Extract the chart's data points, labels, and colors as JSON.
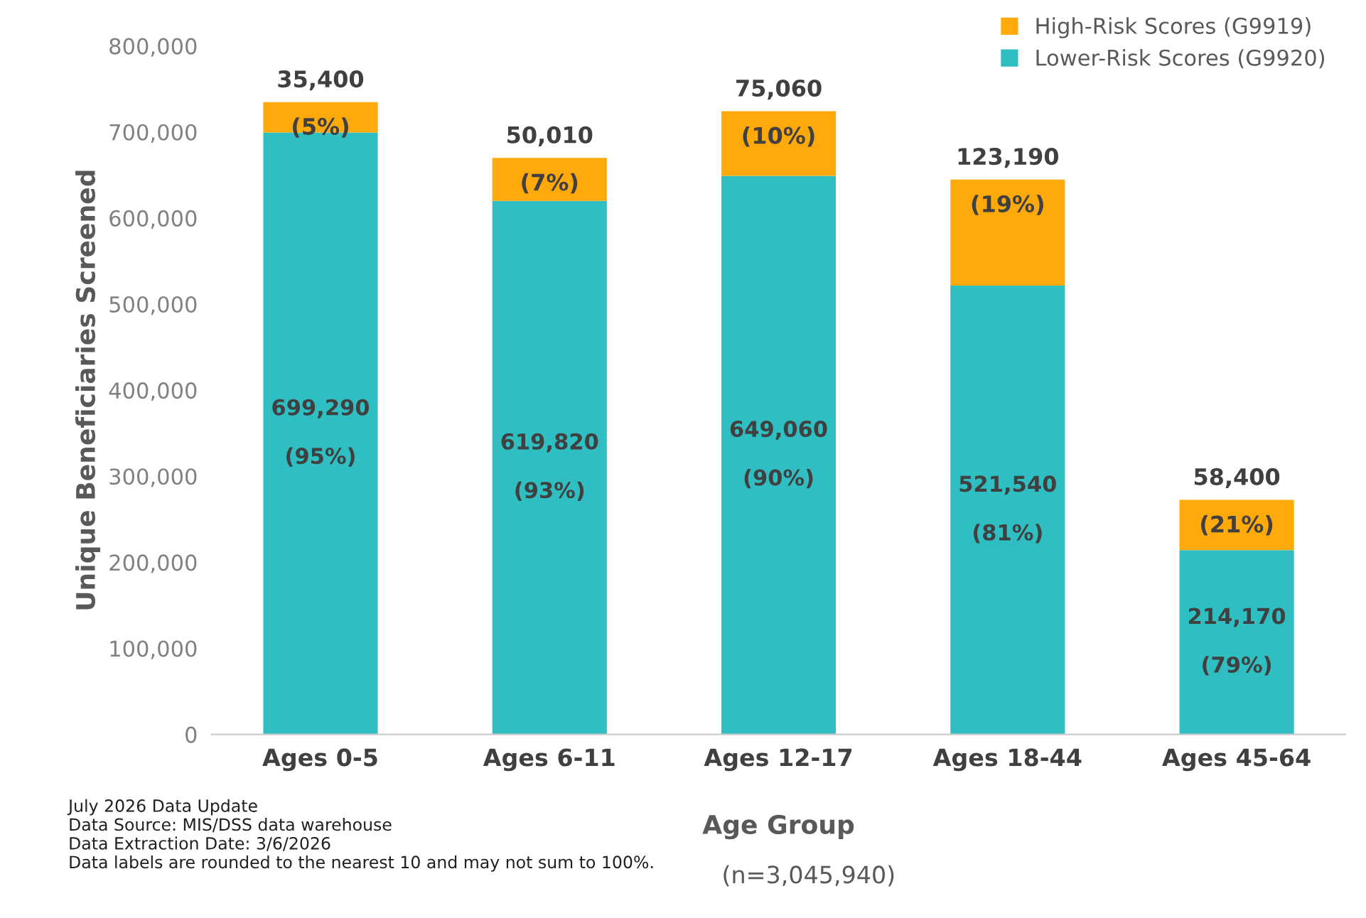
{
  "chart_data": {
    "type": "bar",
    "stacked": true,
    "xlabel": "Age Group",
    "ylabel": "Unique Beneficiaries Screened",
    "categories": [
      "Ages 0-5",
      "Ages 6-11",
      "Ages 12-17",
      "Ages 18-44",
      "Ages 45-64"
    ],
    "series": [
      {
        "name": "Lower-Risk Scores (G9920)",
        "color": "#2fbfc3",
        "values": [
          699290,
          619820,
          649060,
          521540,
          214170
        ],
        "value_labels": [
          "699,290\n\n(95%)",
          "619,820\n\n(93%)",
          "649,060\n\n(90%)",
          "521,540\n\n(81%)",
          "214,170\n\n(79%)"
        ]
      },
      {
        "name": "High-Risk Scores (G9919)",
        "color": "#ffa90a",
        "values": [
          35400,
          50010,
          75060,
          123190,
          58400
        ],
        "value_labels": [
          "35,400\n\n(5%)",
          "50,010\n\n(7%)",
          "75,060\n\n(10%)",
          "123,190\n\n(19%)",
          "58,400\n\n(21%)"
        ]
      }
    ],
    "ylim": [
      0,
      800000
    ],
    "yticks": [
      {
        "value": 0,
        "label": "0"
      },
      {
        "value": 100000,
        "label": "100,000"
      },
      {
        "value": 200000,
        "label": "200,000"
      },
      {
        "value": 300000,
        "label": "300,000"
      },
      {
        "value": 400000,
        "label": "400,000"
      },
      {
        "value": 500000,
        "label": "500,000"
      },
      {
        "value": 600000,
        "label": "600,000"
      },
      {
        "value": 700000,
        "label": "700,000"
      },
      {
        "value": 800000,
        "label": "800,000"
      }
    ],
    "grid": false,
    "legend": "top right",
    "annotations": [
      "(n=3,045,940)",
      "July 2026 Data Update\nData Source: MIS/DSS data warehouse\nData Extraction Date: 3/6/2026\nData labels are rounded to the nearest 10 and may not sum to 100%."
    ]
  }
}
